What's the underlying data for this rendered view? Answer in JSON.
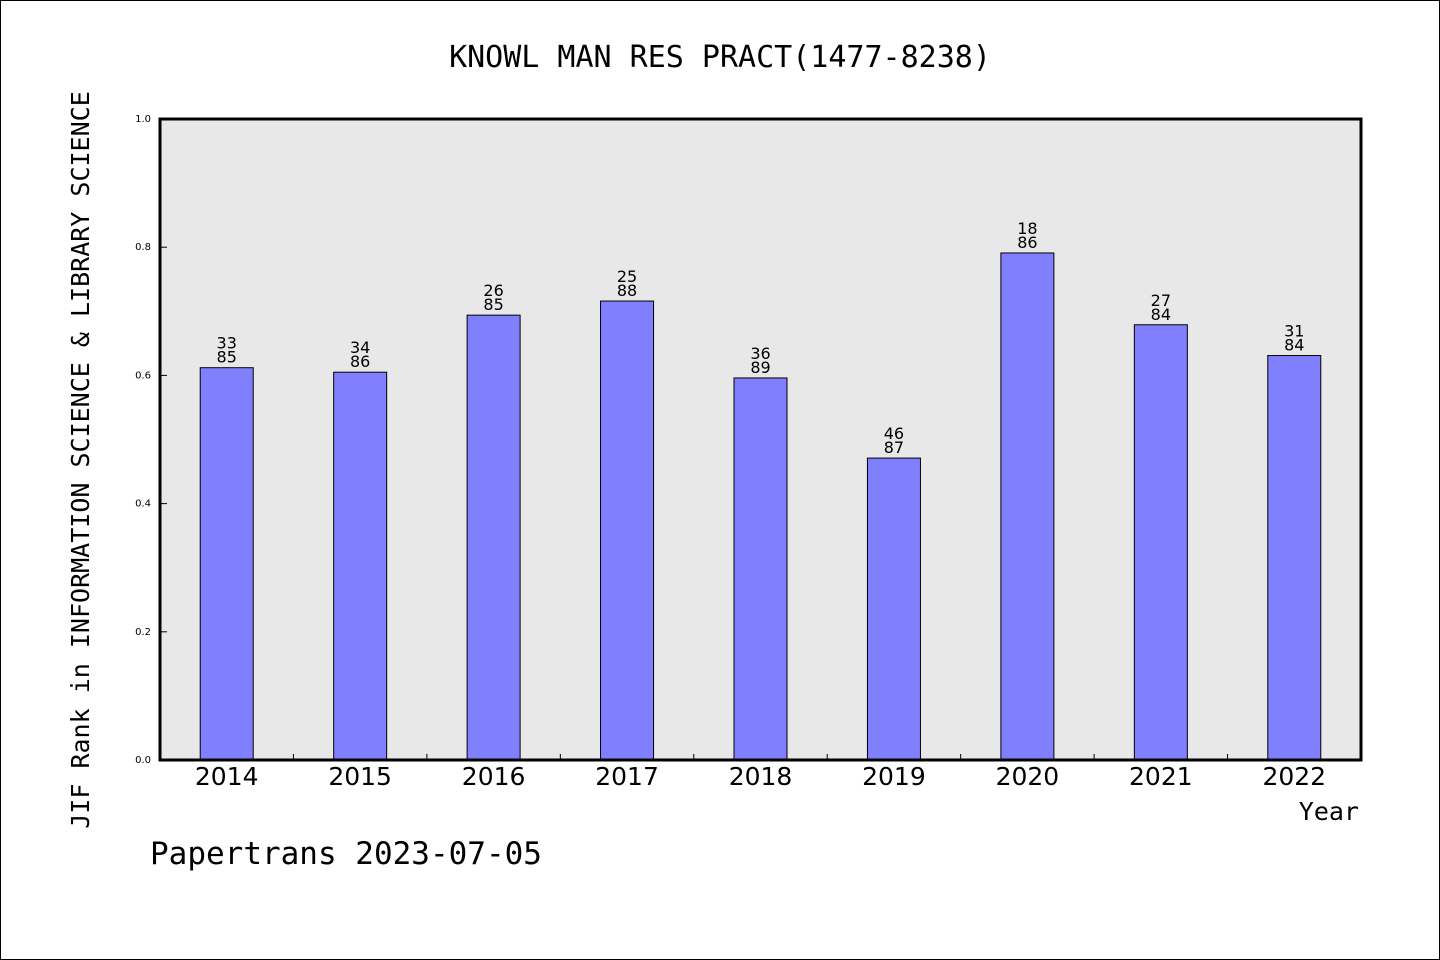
{
  "chart_data": {
    "type": "bar",
    "title": "KNOWL MAN RES PRACT(1477-8238)",
    "xlabel": "Year",
    "ylabel": "JIF Rank in INFORMATION SCIENCE & LIBRARY SCIENCE",
    "ylim": [
      0,
      1.0
    ],
    "yticks": [
      "0.0",
      "0.2",
      "0.4",
      "0.6",
      "0.8",
      "1.0"
    ],
    "grid": false,
    "categories": [
      "2014",
      "2015",
      "2016",
      "2017",
      "2018",
      "2019",
      "2020",
      "2021",
      "2022"
    ],
    "values": [
      0.612,
      0.605,
      0.694,
      0.716,
      0.596,
      0.471,
      0.791,
      0.679,
      0.631
    ],
    "labels": [
      {
        "rank": "33",
        "total": "85"
      },
      {
        "rank": "34",
        "total": "86"
      },
      {
        "rank": "26",
        "total": "85"
      },
      {
        "rank": "25",
        "total": "88"
      },
      {
        "rank": "36",
        "total": "89"
      },
      {
        "rank": "46",
        "total": "87"
      },
      {
        "rank": "18",
        "total": "86"
      },
      {
        "rank": "27",
        "total": "84"
      },
      {
        "rank": "31",
        "total": "84"
      }
    ],
    "bar_color": "#8080ff",
    "plot_bg": "#e8e8e8"
  },
  "footer": {
    "credit": "Papertrans 2023-07-05"
  }
}
